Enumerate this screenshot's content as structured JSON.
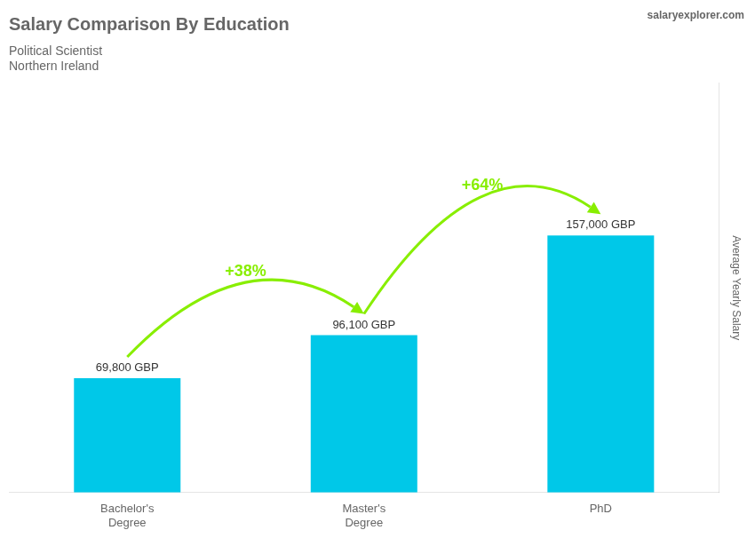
{
  "chart_data": {
    "type": "bar",
    "title": "Salary Comparison By Education",
    "subtitle": [
      "Political Scientist",
      "Northern Ireland"
    ],
    "ylabel": "Average Yearly Salary",
    "categories": [
      "Bachelor's\nDegree",
      "Master's\nDegree",
      "PhD"
    ],
    "values": [
      69800,
      96100,
      157000
    ],
    "value_labels": [
      "69,800 GBP",
      "96,100 GBP",
      "157,000 GBP"
    ],
    "data_labels": true,
    "color": "#00c8e8",
    "ylim": [
      0,
      250000
    ],
    "tick_labels": "x",
    "grid": false,
    "annotations": [
      {
        "type": "arrow",
        "text": "+38%",
        "color": "#88ee00"
      },
      {
        "type": "arrow",
        "text": "+64%",
        "color": "#88ee00"
      },
      {
        "type": "text",
        "text": "salaryexplorer.com"
      }
    ]
  }
}
